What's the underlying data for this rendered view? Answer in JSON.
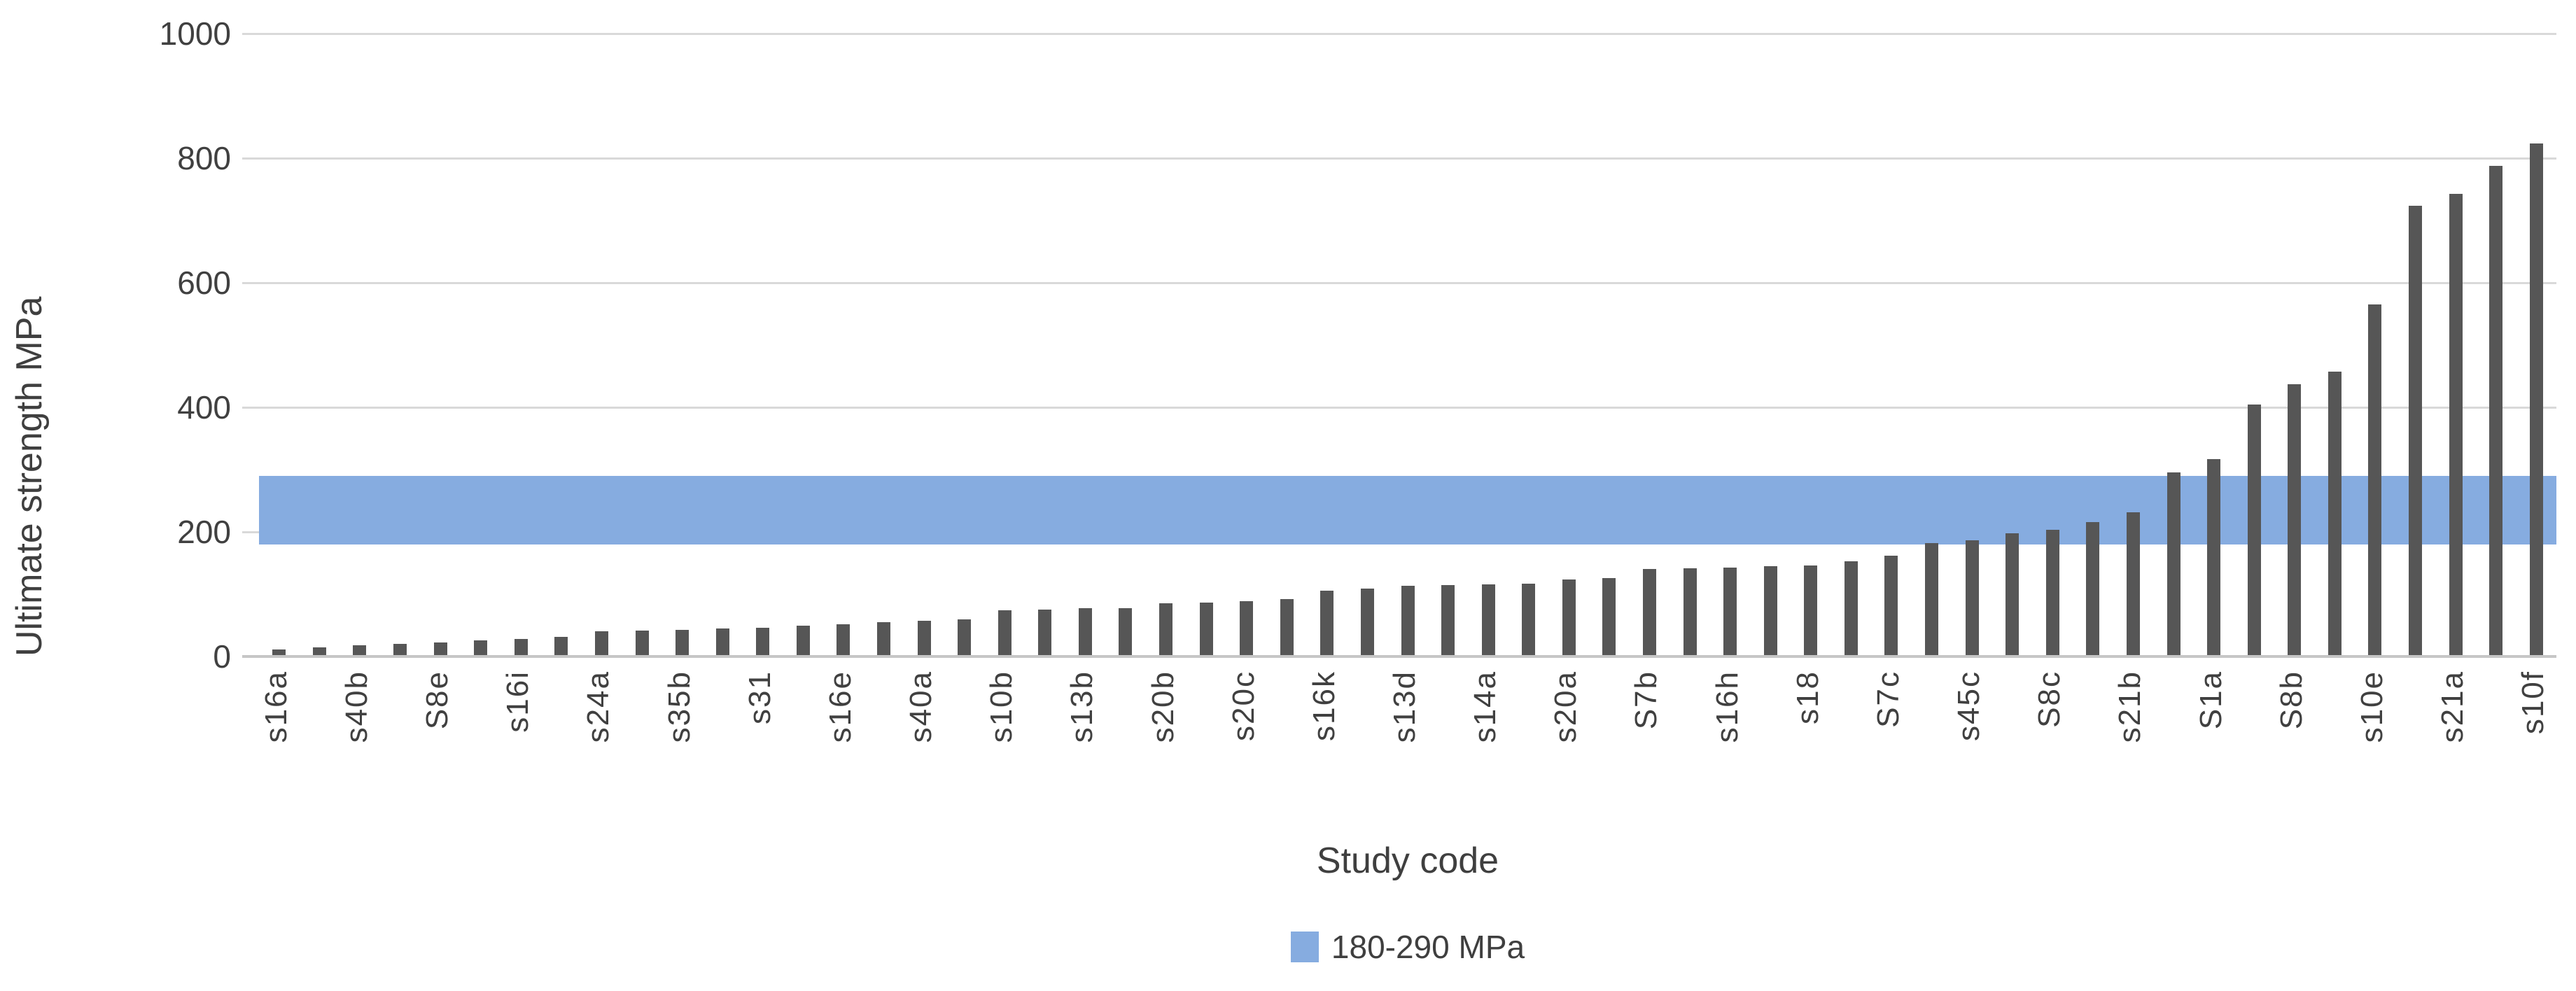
{
  "chart_data": {
    "type": "bar",
    "title": "",
    "ylabel": "Ultimate strength MPa",
    "xlabel": "Study code",
    "ylim": [
      0,
      1000
    ],
    "yticks": [
      0,
      200,
      400,
      600,
      800,
      1000
    ],
    "grid": "horizontal",
    "legend_position": "bottom-center",
    "bar_color": "#565656",
    "band": {
      "from": 180,
      "to": 290,
      "color": "#86ACE0",
      "label": "180-290 MPa"
    },
    "legend": [
      {
        "label": "180-290 MPa",
        "color": "#86ACE0"
      }
    ],
    "categories": [
      "s16a",
      "",
      "s40b",
      "",
      "S8e",
      "",
      "s16i",
      "",
      "s24a",
      "",
      "s35b",
      "",
      "s31",
      "",
      "s16e",
      "",
      "s40a",
      "",
      "s10b",
      "",
      "s13b",
      "",
      "s20b",
      "",
      "s20c",
      "",
      "s16k",
      "",
      "s13d",
      "",
      "s14a",
      "",
      "s20a",
      "",
      "S7b",
      "",
      "s16h",
      "",
      "s18",
      "",
      "S7c",
      "",
      "s45c",
      "",
      "S8c",
      "",
      "s21b",
      "",
      "S1a",
      "",
      "S8b",
      "",
      "s10e",
      "",
      "s21a",
      "",
      "s10f"
    ],
    "values": [
      11,
      15,
      18,
      20,
      22,
      26,
      28,
      32,
      41,
      42,
      43,
      45,
      46,
      50,
      52,
      55,
      57,
      59,
      74,
      75,
      77,
      78,
      85,
      87,
      89,
      92,
      106,
      109,
      113,
      115,
      116,
      117,
      124,
      126,
      141,
      142,
      143,
      145,
      146,
      153,
      162,
      182,
      186,
      198,
      203,
      216,
      231,
      295,
      317,
      405,
      437,
      457,
      565,
      724,
      743,
      788,
      824
    ]
  }
}
